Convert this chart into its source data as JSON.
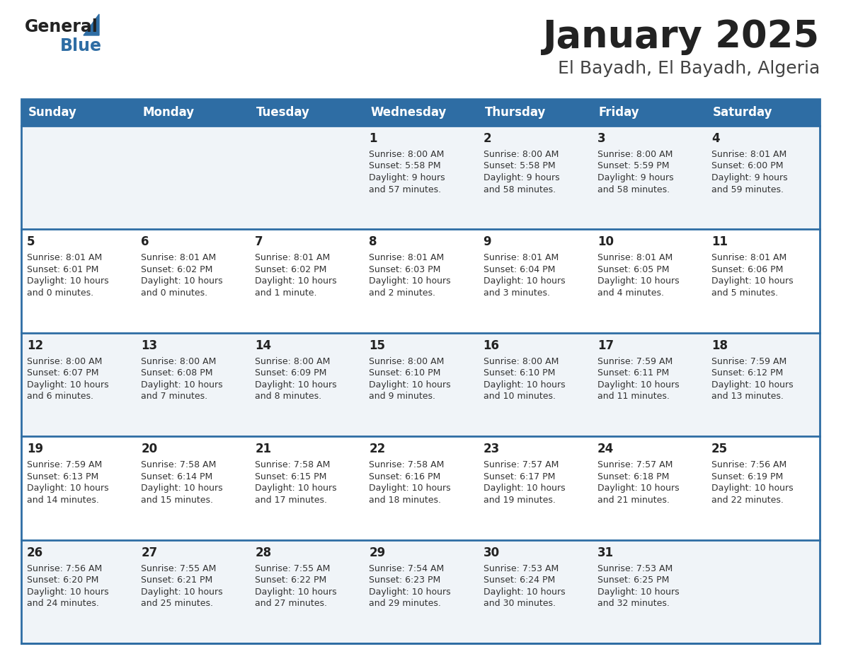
{
  "title": "January 2025",
  "subtitle": "El Bayadh, El Bayadh, Algeria",
  "days_of_week": [
    "Sunday",
    "Monday",
    "Tuesday",
    "Wednesday",
    "Thursday",
    "Friday",
    "Saturday"
  ],
  "header_bg": "#2e6da4",
  "header_text": "#ffffff",
  "row_bg_odd": "#f0f4f8",
  "row_bg_even": "#ffffff",
  "cell_border": "#2e6da4",
  "day_number_color": "#222222",
  "info_text_color": "#333333",
  "title_color": "#222222",
  "subtitle_color": "#444444",
  "logo_general_color": "#222222",
  "logo_blue_color": "#2e6da4",
  "calendar_data": [
    [
      null,
      null,
      null,
      {
        "day": 1,
        "sunrise": "8:00 AM",
        "sunset": "5:58 PM",
        "daylight": "9 hours and 57 minutes"
      },
      {
        "day": 2,
        "sunrise": "8:00 AM",
        "sunset": "5:58 PM",
        "daylight": "9 hours and 58 minutes"
      },
      {
        "day": 3,
        "sunrise": "8:00 AM",
        "sunset": "5:59 PM",
        "daylight": "9 hours and 58 minutes"
      },
      {
        "day": 4,
        "sunrise": "8:01 AM",
        "sunset": "6:00 PM",
        "daylight": "9 hours and 59 minutes"
      }
    ],
    [
      {
        "day": 5,
        "sunrise": "8:01 AM",
        "sunset": "6:01 PM",
        "daylight": "10 hours and 0 minutes"
      },
      {
        "day": 6,
        "sunrise": "8:01 AM",
        "sunset": "6:02 PM",
        "daylight": "10 hours and 0 minutes"
      },
      {
        "day": 7,
        "sunrise": "8:01 AM",
        "sunset": "6:02 PM",
        "daylight": "10 hours and 1 minute"
      },
      {
        "day": 8,
        "sunrise": "8:01 AM",
        "sunset": "6:03 PM",
        "daylight": "10 hours and 2 minutes"
      },
      {
        "day": 9,
        "sunrise": "8:01 AM",
        "sunset": "6:04 PM",
        "daylight": "10 hours and 3 minutes"
      },
      {
        "day": 10,
        "sunrise": "8:01 AM",
        "sunset": "6:05 PM",
        "daylight": "10 hours and 4 minutes"
      },
      {
        "day": 11,
        "sunrise": "8:01 AM",
        "sunset": "6:06 PM",
        "daylight": "10 hours and 5 minutes"
      }
    ],
    [
      {
        "day": 12,
        "sunrise": "8:00 AM",
        "sunset": "6:07 PM",
        "daylight": "10 hours and 6 minutes"
      },
      {
        "day": 13,
        "sunrise": "8:00 AM",
        "sunset": "6:08 PM",
        "daylight": "10 hours and 7 minutes"
      },
      {
        "day": 14,
        "sunrise": "8:00 AM",
        "sunset": "6:09 PM",
        "daylight": "10 hours and 8 minutes"
      },
      {
        "day": 15,
        "sunrise": "8:00 AM",
        "sunset": "6:10 PM",
        "daylight": "10 hours and 9 minutes"
      },
      {
        "day": 16,
        "sunrise": "8:00 AM",
        "sunset": "6:10 PM",
        "daylight": "10 hours and 10 minutes"
      },
      {
        "day": 17,
        "sunrise": "7:59 AM",
        "sunset": "6:11 PM",
        "daylight": "10 hours and 11 minutes"
      },
      {
        "day": 18,
        "sunrise": "7:59 AM",
        "sunset": "6:12 PM",
        "daylight": "10 hours and 13 minutes"
      }
    ],
    [
      {
        "day": 19,
        "sunrise": "7:59 AM",
        "sunset": "6:13 PM",
        "daylight": "10 hours and 14 minutes"
      },
      {
        "day": 20,
        "sunrise": "7:58 AM",
        "sunset": "6:14 PM",
        "daylight": "10 hours and 15 minutes"
      },
      {
        "day": 21,
        "sunrise": "7:58 AM",
        "sunset": "6:15 PM",
        "daylight": "10 hours and 17 minutes"
      },
      {
        "day": 22,
        "sunrise": "7:58 AM",
        "sunset": "6:16 PM",
        "daylight": "10 hours and 18 minutes"
      },
      {
        "day": 23,
        "sunrise": "7:57 AM",
        "sunset": "6:17 PM",
        "daylight": "10 hours and 19 minutes"
      },
      {
        "day": 24,
        "sunrise": "7:57 AM",
        "sunset": "6:18 PM",
        "daylight": "10 hours and 21 minutes"
      },
      {
        "day": 25,
        "sunrise": "7:56 AM",
        "sunset": "6:19 PM",
        "daylight": "10 hours and 22 minutes"
      }
    ],
    [
      {
        "day": 26,
        "sunrise": "7:56 AM",
        "sunset": "6:20 PM",
        "daylight": "10 hours and 24 minutes"
      },
      {
        "day": 27,
        "sunrise": "7:55 AM",
        "sunset": "6:21 PM",
        "daylight": "10 hours and 25 minutes"
      },
      {
        "day": 28,
        "sunrise": "7:55 AM",
        "sunset": "6:22 PM",
        "daylight": "10 hours and 27 minutes"
      },
      {
        "day": 29,
        "sunrise": "7:54 AM",
        "sunset": "6:23 PM",
        "daylight": "10 hours and 29 minutes"
      },
      {
        "day": 30,
        "sunrise": "7:53 AM",
        "sunset": "6:24 PM",
        "daylight": "10 hours and 30 minutes"
      },
      {
        "day": 31,
        "sunrise": "7:53 AM",
        "sunset": "6:25 PM",
        "daylight": "10 hours and 32 minutes"
      },
      null
    ]
  ]
}
